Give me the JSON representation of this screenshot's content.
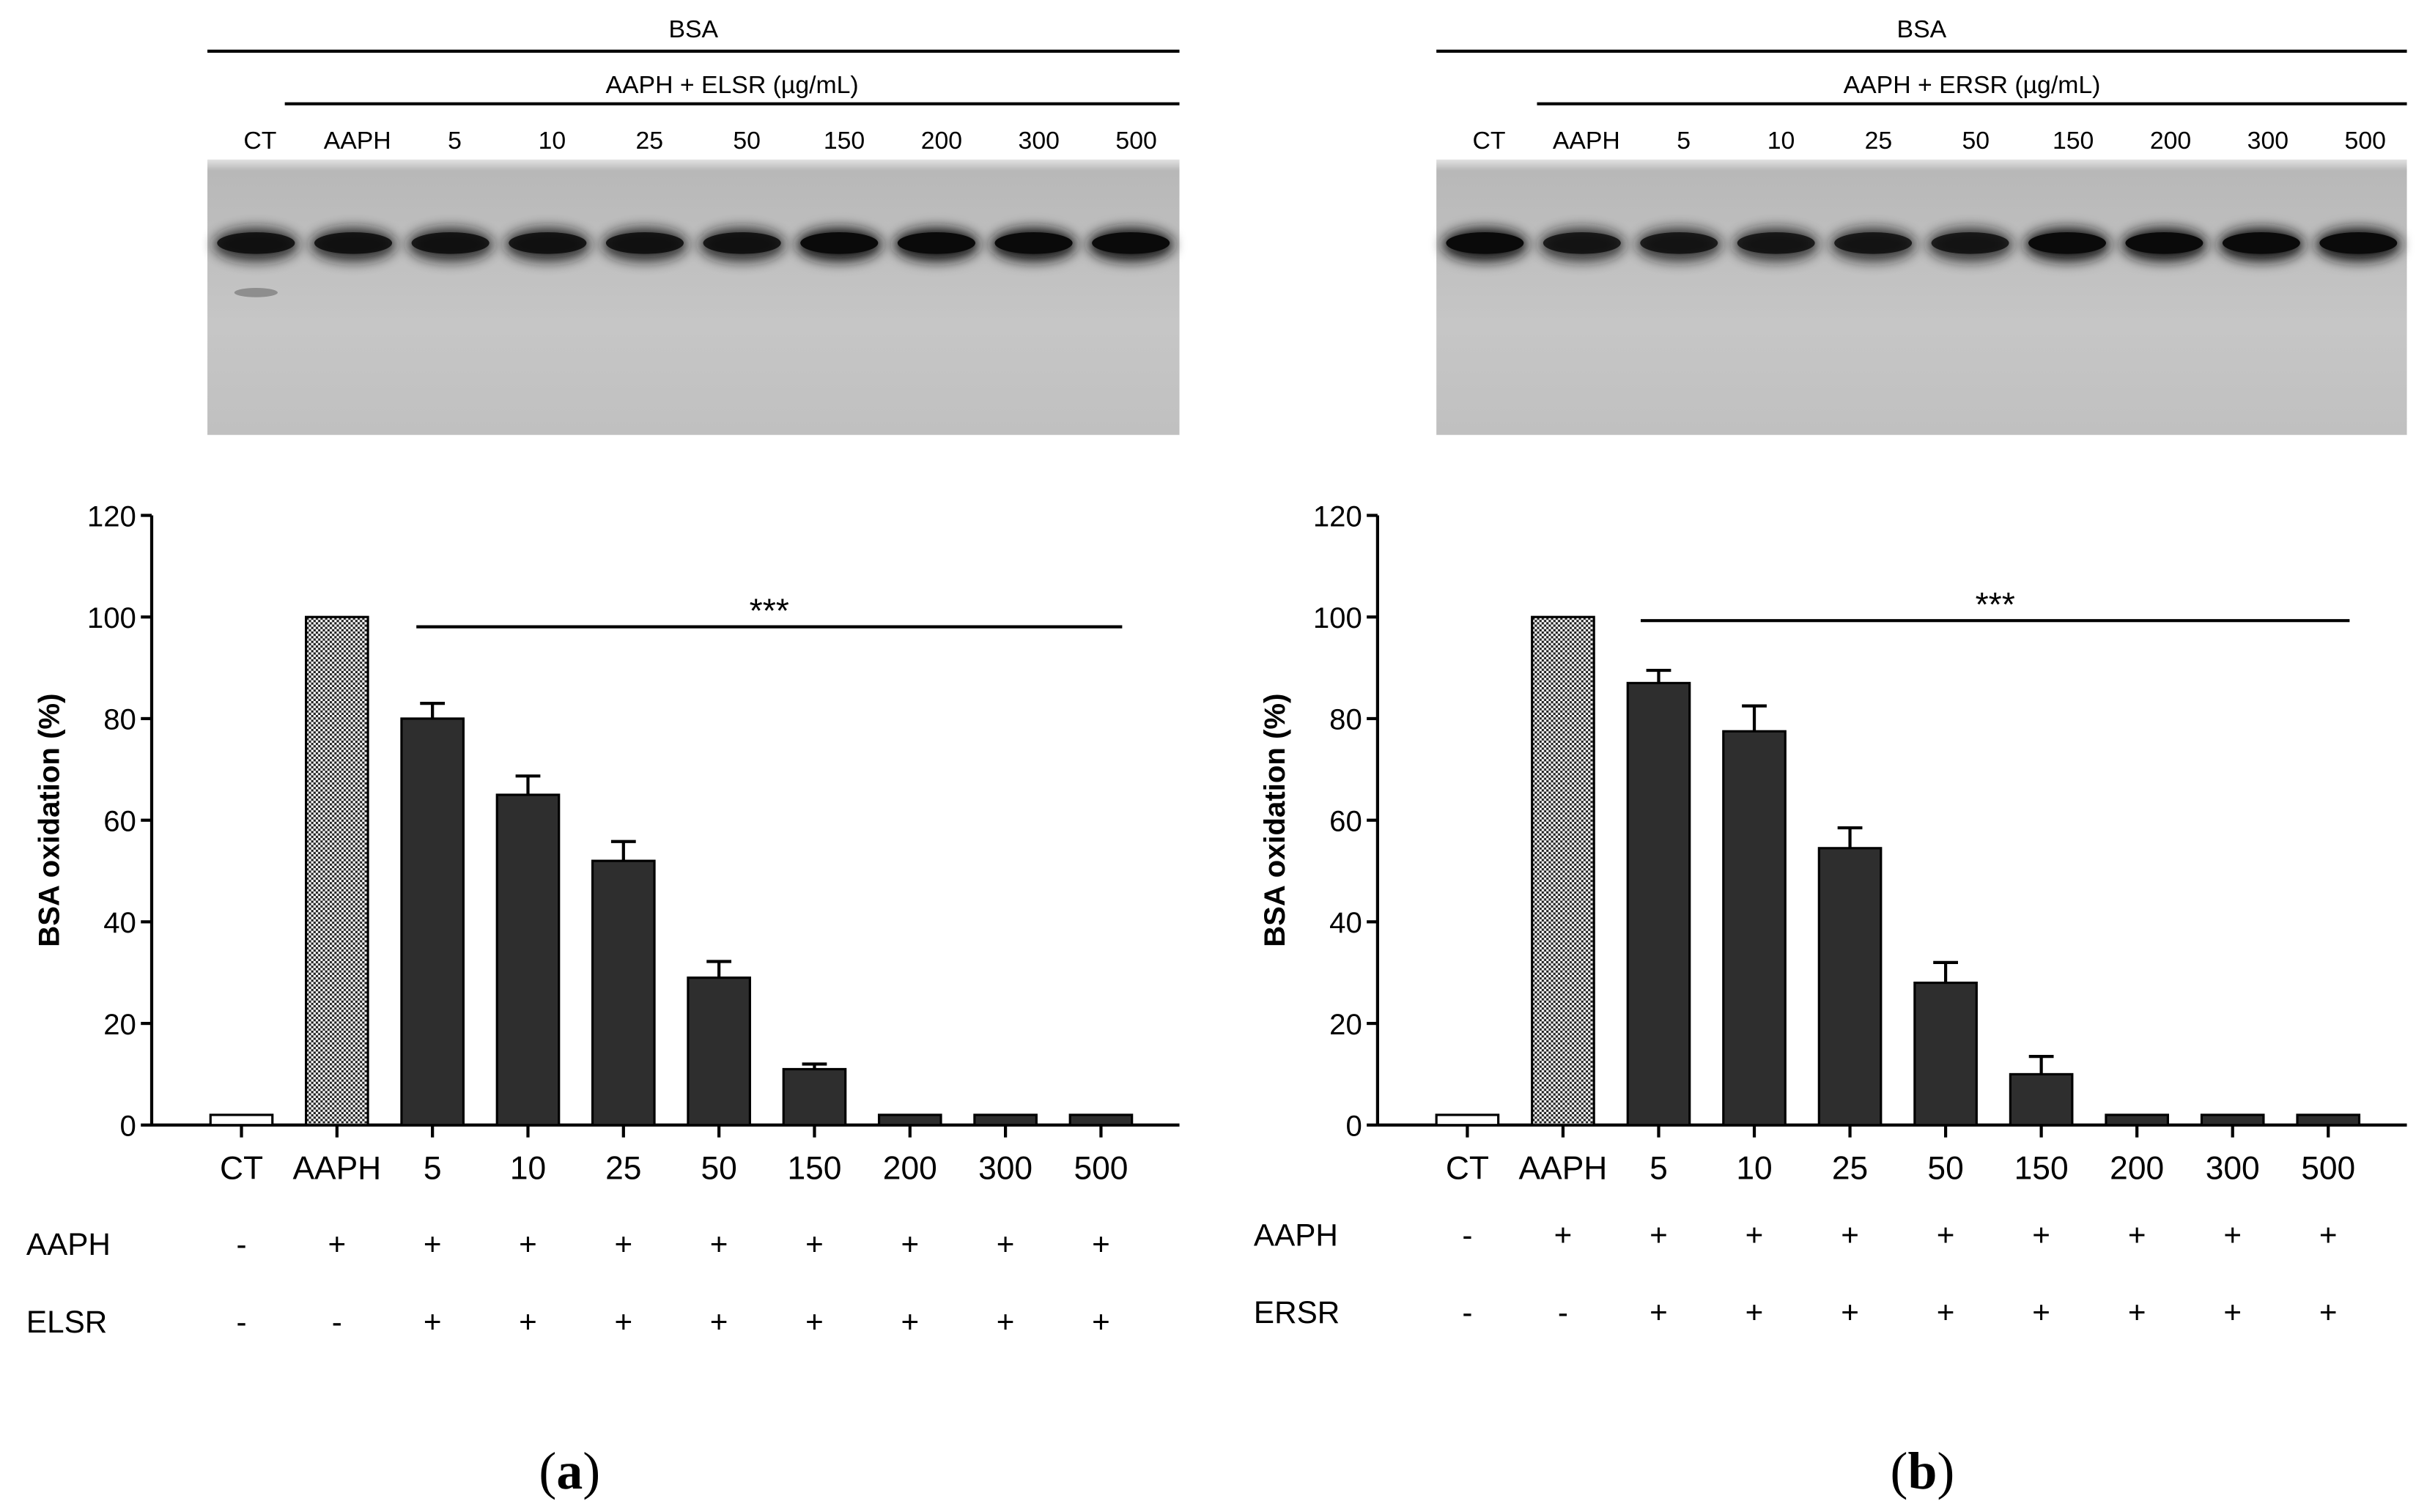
{
  "chart_data": [
    {
      "type": "bar",
      "panel_label": "(a)",
      "panel_letter": "a",
      "gel": {
        "header": "BSA",
        "subheader": "AAPH + ELSR (µg/mL)",
        "lanes": [
          "CT",
          "AAPH",
          "5",
          "10",
          "25",
          "50",
          "150",
          "200",
          "300",
          "500"
        ]
      },
      "ylabel": "BSA oxidation (%)",
      "ylim": [
        0,
        120
      ],
      "yticks": [
        0,
        20,
        40,
        60,
        80,
        100,
        120
      ],
      "categories": [
        "CT",
        "AAPH",
        "5",
        "10",
        "25",
        "50",
        "150",
        "200",
        "300",
        "500"
      ],
      "values": [
        2,
        100,
        80,
        65,
        52,
        29,
        11,
        2,
        2,
        2
      ],
      "errors": [
        0,
        0,
        3,
        3.7,
        3.8,
        3.2,
        1,
        0,
        0,
        0
      ],
      "fill_styles": [
        "white",
        "hatched",
        "dark",
        "dark",
        "dark",
        "dark",
        "dark",
        "dark",
        "dark",
        "dark"
      ],
      "significance": {
        "label": "***",
        "from": "5",
        "to": "500"
      },
      "treatment_rows": [
        {
          "label": "AAPH",
          "values": [
            "-",
            "+",
            "+",
            "+",
            "+",
            "+",
            "+",
            "+",
            "+",
            "+"
          ]
        },
        {
          "label": "ELSR",
          "values": [
            "-",
            "-",
            "+",
            "+",
            "+",
            "+",
            "+",
            "+",
            "+",
            "+"
          ]
        }
      ]
    },
    {
      "type": "bar",
      "panel_label": "(b)",
      "panel_letter": "b",
      "gel": {
        "header": "BSA",
        "subheader": "AAPH + ERSR (µg/mL)",
        "lanes": [
          "CT",
          "AAPH",
          "5",
          "10",
          "25",
          "50",
          "150",
          "200",
          "300",
          "500"
        ]
      },
      "ylabel": "BSA oxidation (%)",
      "ylim": [
        0,
        120
      ],
      "yticks": [
        0,
        20,
        40,
        60,
        80,
        100,
        120
      ],
      "categories": [
        "CT",
        "AAPH",
        "5",
        "10",
        "25",
        "50",
        "150",
        "200",
        "300",
        "500"
      ],
      "values": [
        2,
        100,
        87,
        77.5,
        54.5,
        28,
        10,
        2,
        2,
        2
      ],
      "errors": [
        0,
        0,
        2.5,
        5,
        4,
        4,
        3.5,
        0,
        0,
        0
      ],
      "fill_styles": [
        "white",
        "hatched",
        "dark",
        "dark",
        "dark",
        "dark",
        "dark",
        "dark",
        "dark",
        "dark"
      ],
      "significance": {
        "label": "***",
        "from": "5",
        "to": "500"
      },
      "treatment_rows": [
        {
          "label": "AAPH",
          "values": [
            "-",
            "+",
            "+",
            "+",
            "+",
            "+",
            "+",
            "+",
            "+",
            "+"
          ]
        },
        {
          "label": "ERSR",
          "values": [
            "-",
            "-",
            "+",
            "+",
            "+",
            "+",
            "+",
            "+",
            "+",
            "+"
          ]
        }
      ]
    }
  ],
  "colors": {
    "bar": "#2e2e2e",
    "axis": "#000000",
    "gel_bg": "#c4c4c4",
    "band": "#161616"
  }
}
